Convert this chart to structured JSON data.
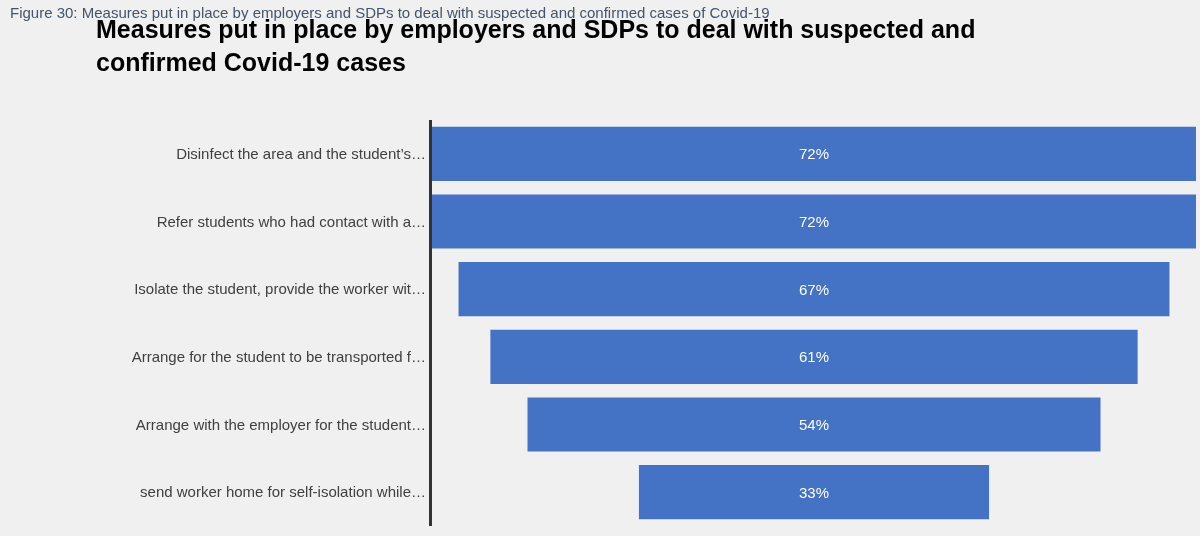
{
  "chart_data": {
    "type": "other",
    "title": "Measures put in place by employers and SDPs to deal with suspected and confirmed Covid-19 cases",
    "annotations": [
      "Figure 30: Measures put in place by employers and SDPs to deal with suspected and confirmed cases of Covid-19"
    ],
    "categories": [
      "Disinfect the area and the student’s…",
      "Refer students who had contact with a…",
      "Isolate the student, provide the worker wit…",
      "Arrange for the student to be transported f…",
      "Arrange with the employer for the student…",
      "send worker home for self-isolation while…"
    ],
    "values": [
      72,
      72,
      67,
      61,
      54,
      33
    ],
    "value_labels": [
      "72%",
      "72%",
      "67%",
      "61%",
      "54%",
      "33%"
    ],
    "color": "#4472c4"
  }
}
